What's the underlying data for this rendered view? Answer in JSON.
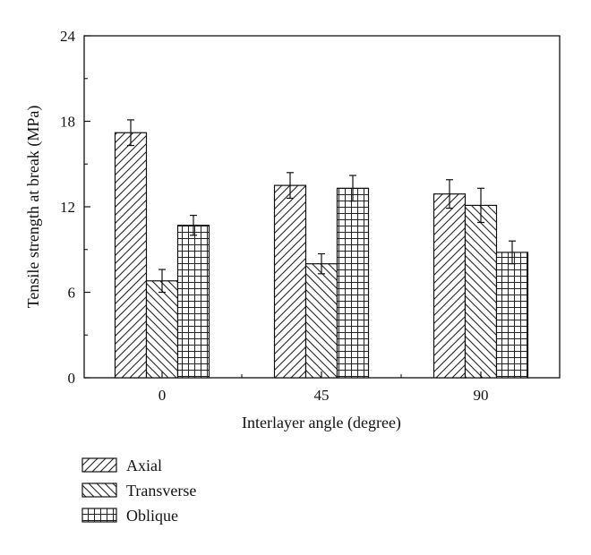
{
  "chart_data": {
    "type": "bar",
    "categories": [
      "0",
      "45",
      "90"
    ],
    "series": [
      {
        "name": "Axial",
        "values": [
          17.2,
          13.5,
          12.9
        ],
        "errors": [
          0.9,
          0.9,
          1.0
        ],
        "pattern": "diag-right"
      },
      {
        "name": "Transverse",
        "values": [
          6.8,
          8.0,
          12.1
        ],
        "errors": [
          0.8,
          0.7,
          1.2
        ],
        "pattern": "diag-left"
      },
      {
        "name": "Oblique",
        "values": [
          10.7,
          13.3,
          8.8
        ],
        "errors": [
          0.7,
          0.9,
          0.8
        ],
        "pattern": "grid"
      }
    ],
    "xlabel": "Interlayer angle (degree)",
    "ylabel": "Tensile strength at break (MPa)",
    "ylim": [
      0,
      24
    ],
    "yticks": [
      0,
      6,
      12,
      18,
      24
    ],
    "grid": false,
    "legend_position": "bottom-left"
  }
}
